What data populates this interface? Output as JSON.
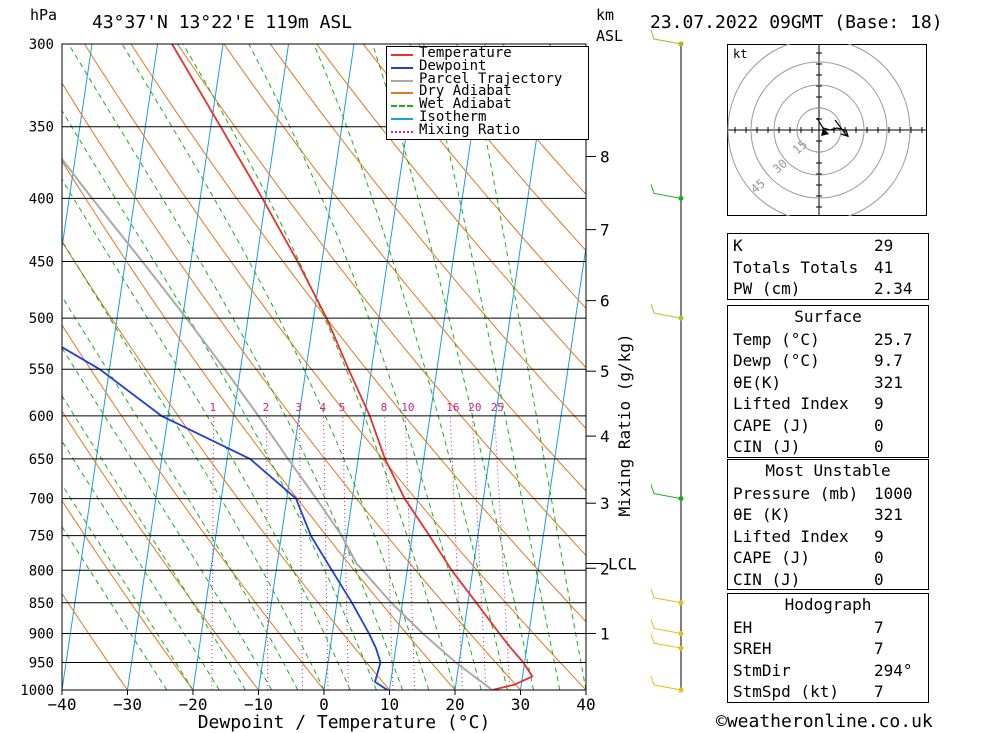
{
  "header": {
    "pressure_unit": "hPa",
    "location": "43°37'N  13°22'E  119m  ASL",
    "km_label": "km",
    "asl_label": "ASL",
    "datetime": "23.07.2022  09GMT  (Base: 18)"
  },
  "footer": {
    "copyright": "©weatheronline.co.uk"
  },
  "legend": [
    {
      "label": "Temperature",
      "color": "#e8302e",
      "style": "solid"
    },
    {
      "label": "Dewpoint",
      "color": "#1f3fd6",
      "style": "solid"
    },
    {
      "label": "Parcel Trajectory",
      "color": "#aaaaaa",
      "style": "solid"
    },
    {
      "label": "Dry Adiabat",
      "color": "#e07820",
      "style": "solid"
    },
    {
      "label": "Wet Adiabat",
      "color": "#18b018",
      "style": "dashed"
    },
    {
      "label": "Isotherm",
      "color": "#1a9ee0",
      "style": "solid"
    },
    {
      "label": "Mixing Ratio",
      "color": "#d0208a",
      "style": "dotted"
    }
  ],
  "chart_data": {
    "type": "line",
    "xlabel": "Dewpoint / Temperature (°C)",
    "ylabel": "hPa",
    "secondary_ylabel": "Mixing Ratio (g/kg)",
    "xlim": [
      -40,
      40
    ],
    "ylim": [
      1000,
      300
    ],
    "skew_per_decade_pressure_deg_c": 27.9,
    "x_ticks": [
      "−40",
      "−30",
      "−20",
      "−10",
      "0",
      "10",
      "20",
      "30",
      "40"
    ],
    "pressure_levels": [
      300,
      350,
      400,
      450,
      500,
      550,
      600,
      650,
      700,
      750,
      800,
      850,
      900,
      950,
      1000
    ],
    "km_ticks": [
      {
        "km": 1,
        "p": 900
      },
      {
        "km": 2,
        "p": 797
      },
      {
        "km": 3,
        "p": 706
      },
      {
        "km": 4,
        "p": 623
      },
      {
        "km": 5,
        "p": 552
      },
      {
        "km": 6,
        "p": 484
      },
      {
        "km": 7,
        "p": 424
      },
      {
        "km": 8,
        "p": 370
      }
    ],
    "lcl": {
      "label": "LCL",
      "p": 790
    },
    "mixing_ratio_labels": [
      "1",
      "2",
      "3",
      "4",
      "5",
      "8",
      "10",
      "16",
      "20",
      "25"
    ],
    "mixing_ratio_label_pressure": 600,
    "series": [
      {
        "name": "Temperature",
        "color": "#e8302e",
        "points": [
          [
            1000,
            25.7
          ],
          [
            990,
            29
          ],
          [
            975,
            31.5
          ],
          [
            950,
            29.8
          ],
          [
            925,
            27.6
          ],
          [
            900,
            25.5
          ],
          [
            850,
            21.3
          ],
          [
            800,
            16.8
          ],
          [
            750,
            12.6
          ],
          [
            700,
            8.0
          ],
          [
            650,
            4.1
          ],
          [
            600,
            0.8
          ],
          [
            550,
            -3.5
          ],
          [
            500,
            -8.0
          ],
          [
            450,
            -13.7
          ],
          [
            400,
            -20.5
          ],
          [
            350,
            -28.5
          ],
          [
            300,
            -37.8
          ]
        ]
      },
      {
        "name": "Dewpoint",
        "color": "#1f3fd6",
        "points": [
          [
            1000,
            9.7
          ],
          [
            985,
            7.6
          ],
          [
            950,
            8.0
          ],
          [
            925,
            7.0
          ],
          [
            900,
            5.6
          ],
          [
            850,
            2.3
          ],
          [
            800,
            -1.5
          ],
          [
            750,
            -5.5
          ],
          [
            700,
            -8.6
          ],
          [
            650,
            -16.5
          ],
          [
            600,
            -31.0
          ],
          [
            550,
            -41.5
          ],
          [
            500,
            -56.0
          ],
          [
            450,
            -60.5
          ],
          [
            400,
            -69.0
          ],
          [
            350,
            -72.5
          ],
          [
            300,
            -78.0
          ]
        ]
      },
      {
        "name": "Parcel Trajectory",
        "color": "#aaaaaa",
        "points": [
          [
            1000,
            25.7
          ],
          [
            950,
            19.5
          ],
          [
            900,
            13.8
          ],
          [
            850,
            8.3
          ],
          [
            800,
            3.2
          ],
          [
            790,
            2.1
          ],
          [
            750,
            -0.8
          ],
          [
            700,
            -5.5
          ],
          [
            650,
            -10.7
          ],
          [
            600,
            -16.2
          ],
          [
            550,
            -22.4
          ],
          [
            500,
            -29.4
          ],
          [
            450,
            -37.4
          ],
          [
            400,
            -46.5
          ],
          [
            350,
            -56.5
          ],
          [
            300,
            -67.0
          ]
        ]
      }
    ]
  },
  "wind_barbs": [
    {
      "p": 300,
      "color": "#a8b820"
    },
    {
      "p": 400,
      "color": "#18b018"
    },
    {
      "p": 500,
      "color": "#a8c820"
    },
    {
      "p": 700,
      "color": "#18b018"
    },
    {
      "p": 850,
      "color": "#e0c020"
    },
    {
      "p": 900,
      "color": "#e0c020"
    },
    {
      "p": 925,
      "color": "#e0c020"
    },
    {
      "p": 1000,
      "color": "#e0c020"
    }
  ],
  "hodograph": {
    "unit_label": "kt",
    "ring_labels": [
      "15",
      "30",
      "45"
    ]
  },
  "indices": {
    "k_label": "K",
    "k": "29",
    "tt_label": "Totals Totals",
    "tt": "41",
    "pw_label": "PW (cm)",
    "pw": "2.34"
  },
  "surface": {
    "title": "Surface",
    "temp_label": "Temp (°C)",
    "temp": "25.7",
    "dewp_label": "Dewp (°C)",
    "dewp": "9.7",
    "theta_label": "θE(K)",
    "theta": "321",
    "li_label": "Lifted Index",
    "li": "9",
    "cape_label": "CAPE (J)",
    "cape": "0",
    "cin_label": "CIN (J)",
    "cin": "0"
  },
  "most_unstable": {
    "title": "Most Unstable",
    "pressure_label": "Pressure (mb)",
    "pressure": "1000",
    "theta_label": "θE (K)",
    "theta": "321",
    "li_label": "Lifted Index",
    "li": "9",
    "cape_label": "CAPE (J)",
    "cape": "0",
    "cin_label": "CIN (J)",
    "cin": "0"
  },
  "hodograph_stats": {
    "title": "Hodograph",
    "eh_label": "EH",
    "eh": "7",
    "sreh_label": "SREH",
    "sreh": "7",
    "stmdir_label": "StmDir",
    "stmdir": "294°",
    "stmspd_label": "StmSpd (kt)",
    "stmspd": "7"
  }
}
